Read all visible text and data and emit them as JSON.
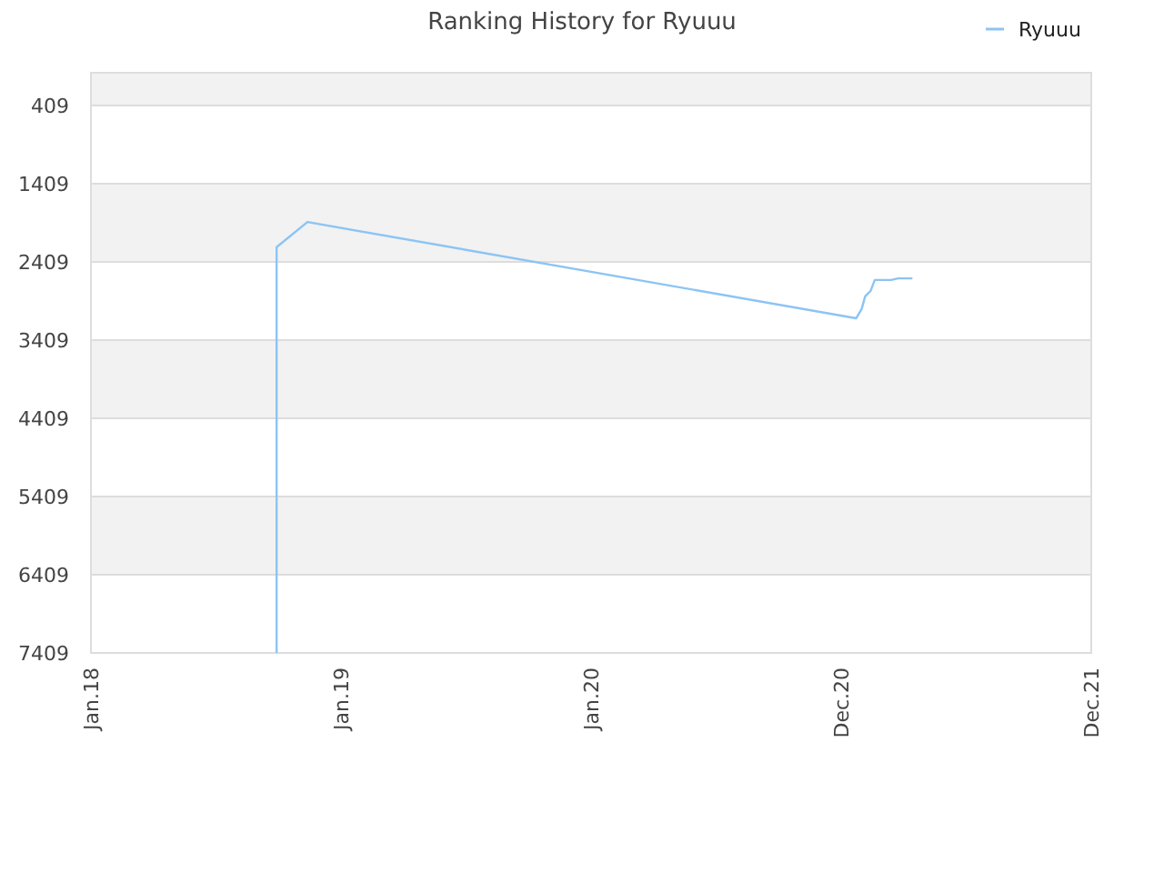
{
  "chart_data": {
    "type": "line",
    "title": "Ranking History for Ryuuu",
    "x": [
      "2018-09-29",
      "2018-09-29",
      "2018-11-13",
      "2021-01-22",
      "2021-01-30",
      "2021-02-04",
      "2021-02-12",
      "2021-02-18",
      "2021-03-14",
      "2021-03-24",
      "2021-04-14"
    ],
    "series": [
      {
        "name": "Ryuuu",
        "color": "#8cc4f4",
        "values": [
          7409,
          2220,
          1900,
          3130,
          3010,
          2850,
          2780,
          2640,
          2640,
          2620,
          2620
        ]
      }
    ],
    "xlim": [
      "2018-01-01",
      "2021-12-31"
    ],
    "xticks": [
      {
        "value": "2018-01-01",
        "label": "Jan.18"
      },
      {
        "value": "2019-01-01",
        "label": "Jan.19"
      },
      {
        "value": "2020-01-01",
        "label": "Jan.20"
      },
      {
        "value": "2020-12-31",
        "label": "Dec.20"
      },
      {
        "value": "2021-12-31",
        "label": "Dec.21"
      }
    ],
    "ylim": [
      7409,
      -9
    ],
    "yticks": [
      409,
      1409,
      2409,
      3409,
      4409,
      5409,
      6409,
      7409
    ],
    "grid": true,
    "legend": "top right",
    "marker": "none",
    "line_style": "solid"
  }
}
